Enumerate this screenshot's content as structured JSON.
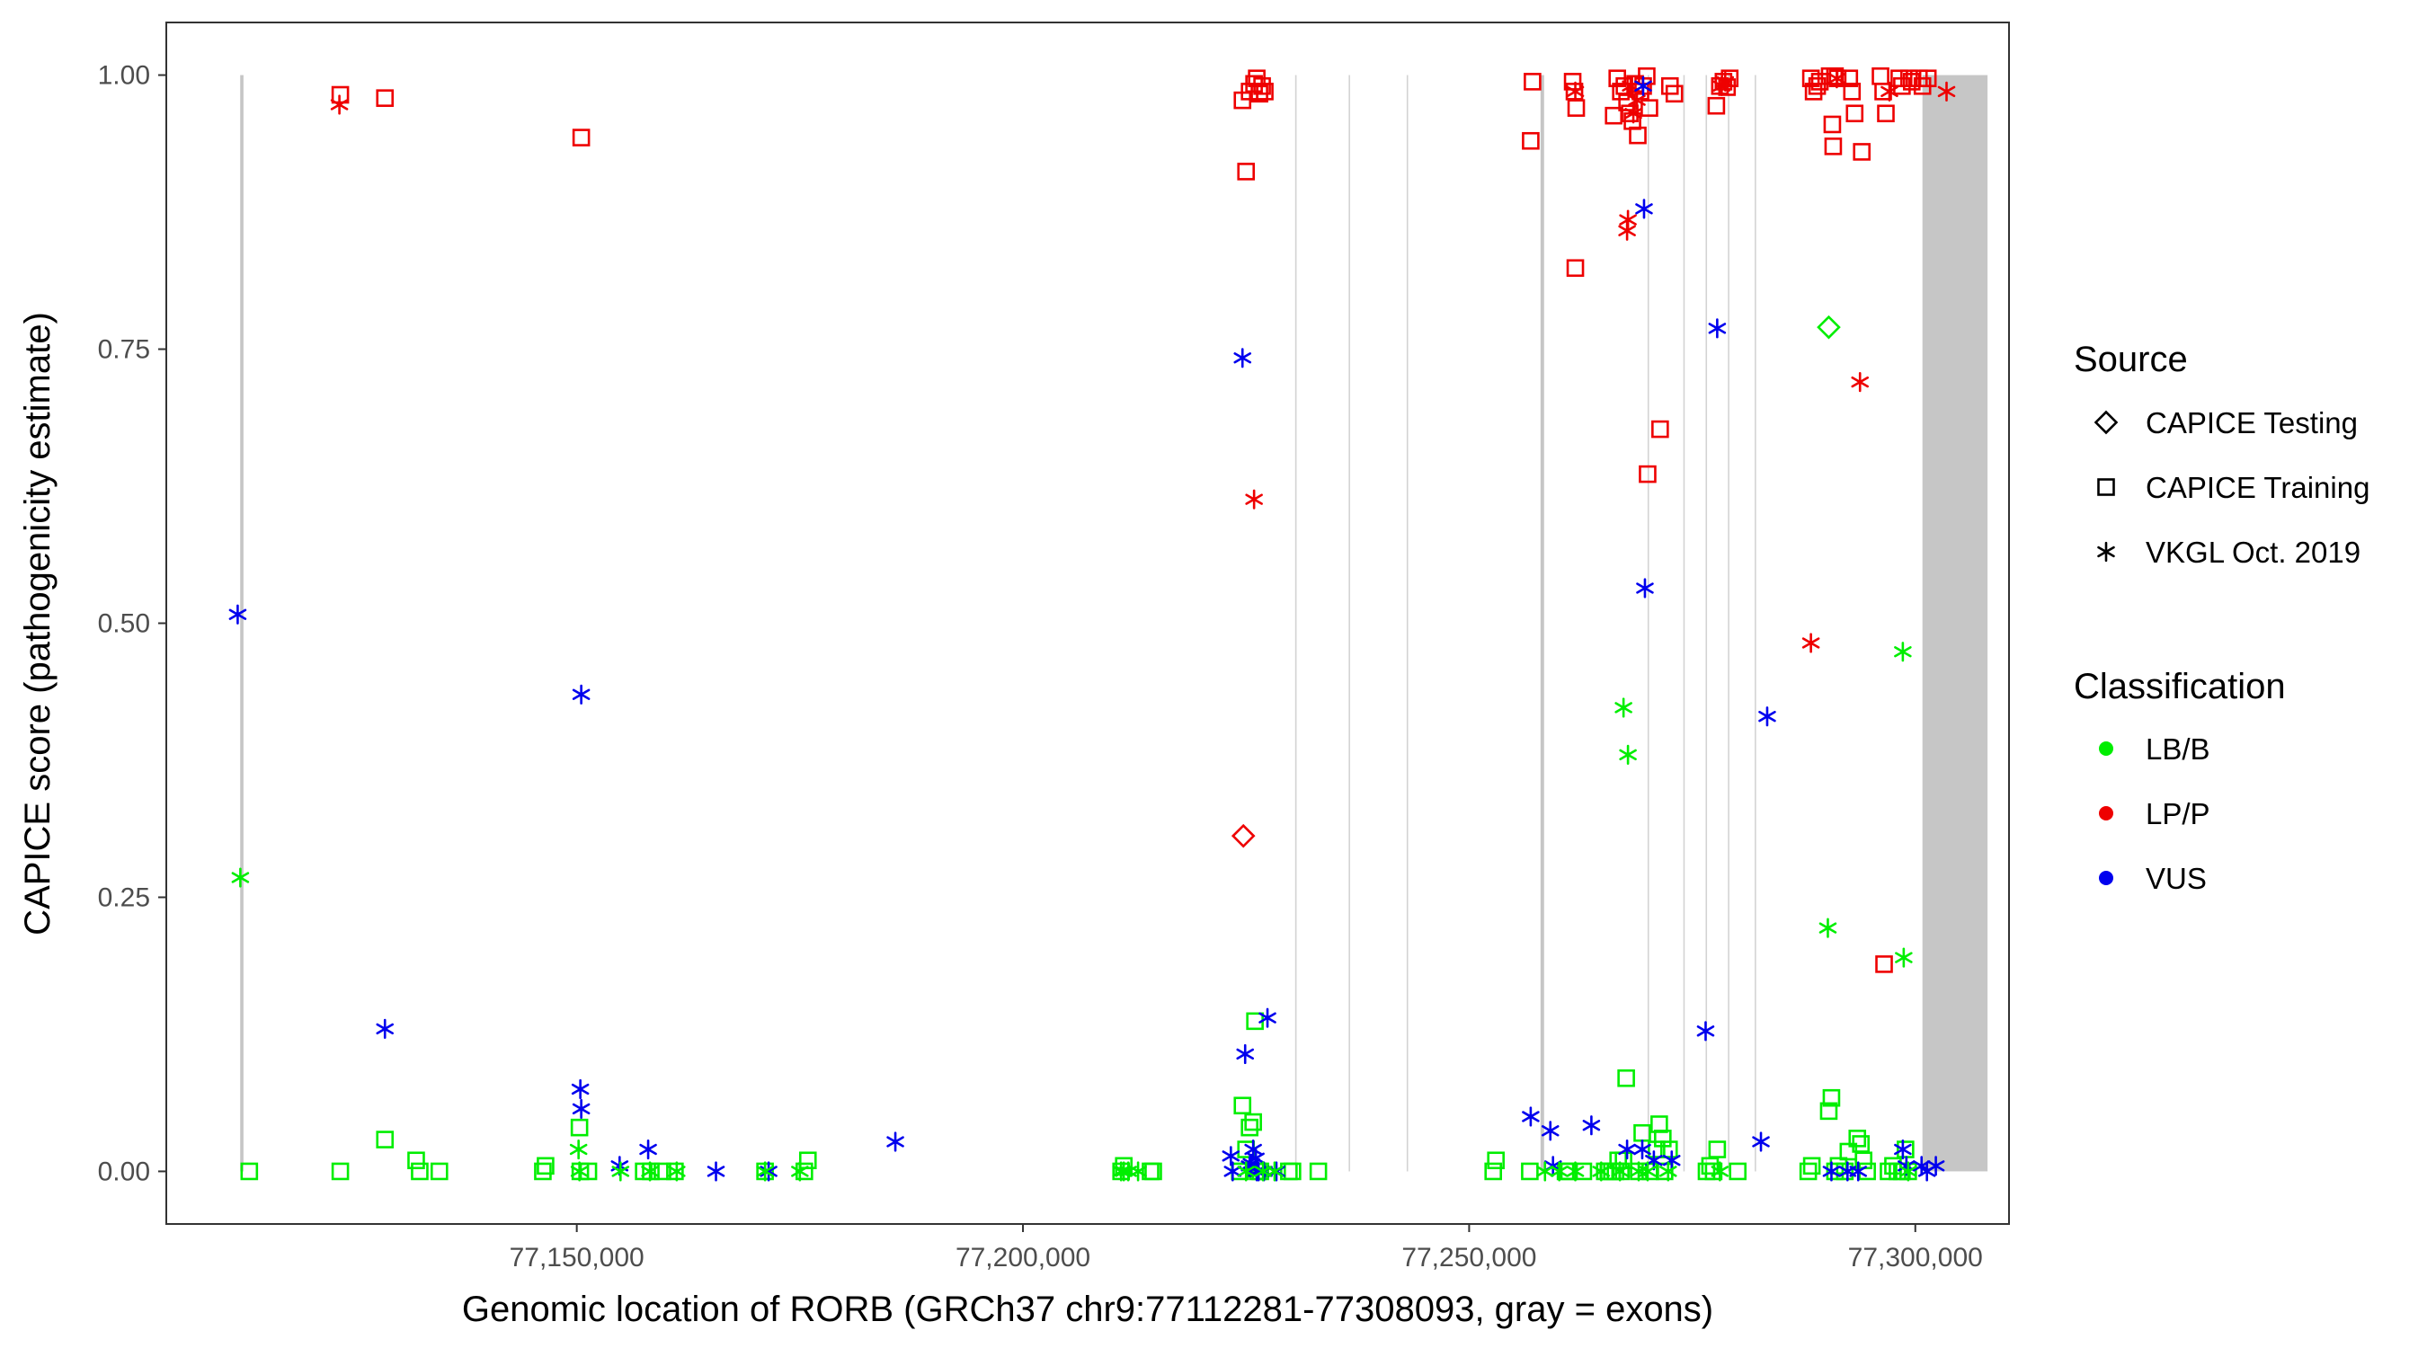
{
  "chart_data": {
    "type": "scatter",
    "xlabel": "Genomic location of RORB (GRCh37 chr9:77112281-77308093, gray = exons)",
    "ylabel": "CAPICE score (pathogenicity estimate)",
    "xlim": [
      77104000,
      77310500
    ],
    "ylim": [
      -0.048,
      1.048
    ],
    "x_ticks": [
      77150000,
      77200000,
      77250000,
      77300000
    ],
    "x_tick_labels": [
      "77,150,000",
      "77,200,000",
      "77,250,000",
      "77,300,000"
    ],
    "y_ticks": [
      0,
      0.25,
      0.5,
      0.75,
      1
    ],
    "y_tick_labels": [
      "0.00",
      "0.25",
      "0.50",
      "0.75",
      "1.00"
    ],
    "grid": false,
    "exons": [
      [
        77112281,
        77112650
      ],
      [
        77230500,
        77230600
      ],
      [
        77236500,
        77236600
      ],
      [
        77243000,
        77243100
      ],
      [
        77258000,
        77258400
      ],
      [
        77270000,
        77270100
      ],
      [
        77274000,
        77274100
      ],
      [
        77276500,
        77276600
      ],
      [
        77279000,
        77279100
      ],
      [
        77282000,
        77282100
      ],
      [
        77300800,
        77308093
      ]
    ],
    "colors": {
      "LB/B": "#00ee00",
      "LP/P": "#ee0000",
      "VUS": "#0000ee"
    },
    "legend": {
      "placement": "right",
      "source_title": "Source",
      "sources": [
        {
          "key": "testing",
          "label": "CAPICE Testing",
          "shape": "diamond"
        },
        {
          "key": "training",
          "label": "CAPICE Training",
          "shape": "square"
        },
        {
          "key": "vkgl",
          "label": "VKGL Oct. 2019",
          "shape": "asterisk"
        }
      ],
      "class_title": "Classification",
      "classes": [
        "LB/B",
        "LP/P",
        "VUS"
      ]
    },
    "series": [
      {
        "source": "training",
        "cls": "LP/P",
        "points": [
          [
            77123500,
            0.982
          ],
          [
            77128500,
            0.979
          ],
          [
            77150500,
            0.943
          ],
          [
            77224600,
            0.977
          ],
          [
            77225000,
            0.912
          ],
          [
            77225400,
            0.985
          ],
          [
            77225900,
            0.992
          ],
          [
            77226200,
            0.997
          ],
          [
            77226500,
            0.983
          ],
          [
            77226800,
            0.99
          ],
          [
            77227100,
            0.985
          ],
          [
            77257100,
            0.994
          ],
          [
            77256900,
            0.94
          ],
          [
            77261600,
            0.994
          ],
          [
            77261800,
            0.985
          ],
          [
            77262000,
            0.97
          ],
          [
            77261900,
            0.824
          ],
          [
            77266200,
            0.963
          ],
          [
            77266600,
            0.997
          ],
          [
            77267000,
            0.985
          ],
          [
            77267400,
            0.99
          ],
          [
            77267700,
            0.975
          ],
          [
            77268000,
            0.965
          ],
          [
            77268300,
            0.958
          ],
          [
            77268600,
            0.992
          ],
          [
            77268900,
            0.945
          ],
          [
            77269200,
            0.985
          ],
          [
            77269500,
            0.99
          ],
          [
            77269900,
            0.999
          ],
          [
            77270200,
            0.97
          ],
          [
            77270000,
            0.636
          ],
          [
            77271400,
            0.677
          ],
          [
            77272500,
            0.99
          ],
          [
            77273000,
            0.983
          ],
          [
            77277700,
            0.972
          ],
          [
            77278100,
            0.99
          ],
          [
            77278500,
            0.994
          ],
          [
            77278900,
            0.989
          ],
          [
            77279200,
            0.997
          ],
          [
            77288300,
            0.997
          ],
          [
            77288600,
            0.985
          ],
          [
            77289000,
            0.99
          ],
          [
            77289300,
            0.994
          ],
          [
            77290400,
            0.999
          ],
          [
            77290700,
            0.955
          ],
          [
            77290800,
            0.935
          ],
          [
            77291000,
            0.999
          ],
          [
            77291300,
            0.997
          ],
          [
            77292600,
            0.997
          ],
          [
            77292900,
            0.985
          ],
          [
            77293200,
            0.965
          ],
          [
            77294000,
            0.93
          ],
          [
            77296100,
            0.999
          ],
          [
            77296400,
            0.985
          ],
          [
            77296700,
            0.965
          ],
          [
            77296500,
            0.189
          ],
          [
            77298200,
            0.997
          ],
          [
            77298500,
            0.99
          ],
          [
            77299300,
            0.997
          ],
          [
            77299600,
            0.994
          ],
          [
            77300400,
            0.997
          ],
          [
            77300800,
            0.99
          ],
          [
            77301400,
            0.997
          ]
        ]
      },
      {
        "source": "training",
        "cls": "LB/B",
        "points": [
          [
            77113300,
            0.0
          ],
          [
            77123500,
            0.0
          ],
          [
            77128500,
            0.029
          ],
          [
            77132000,
            0.01
          ],
          [
            77132400,
            0.0
          ],
          [
            77134600,
            0.0
          ],
          [
            77146200,
            0.0
          ],
          [
            77146500,
            0.005
          ],
          [
            77150300,
            0.04
          ],
          [
            77150400,
            0.0
          ],
          [
            77151300,
            0.0
          ],
          [
            77157500,
            0.0
          ],
          [
            77158300,
            0.0
          ],
          [
            77159600,
            0.0
          ],
          [
            77161000,
            0.0
          ],
          [
            77171100,
            0.0
          ],
          [
            77175500,
            0.0
          ],
          [
            77175900,
            0.01
          ],
          [
            77211000,
            0.0
          ],
          [
            77211300,
            0.005
          ],
          [
            77214300,
            0.0
          ],
          [
            77214600,
            0.0
          ],
          [
            77230200,
            0.0
          ],
          [
            77233100,
            0.0
          ],
          [
            77224300,
            0.0
          ],
          [
            77224600,
            0.06
          ],
          [
            77225000,
            0.02
          ],
          [
            77225400,
            0.04
          ],
          [
            77225800,
            0.045
          ],
          [
            77226000,
            0.137
          ],
          [
            77226300,
            0.0
          ],
          [
            77226600,
            0.0
          ],
          [
            77229800,
            0.0
          ],
          [
            77252700,
            0.0
          ],
          [
            77253000,
            0.01
          ],
          [
            77256800,
            0.0
          ],
          [
            77260800,
            0.0
          ],
          [
            77261200,
            0.0
          ],
          [
            77262800,
            0.0
          ],
          [
            77265200,
            0.0
          ],
          [
            77265600,
            0.0
          ],
          [
            77266000,
            0.0
          ],
          [
            77266400,
            0.0
          ],
          [
            77266700,
            0.01
          ],
          [
            77267000,
            0.0
          ],
          [
            77267300,
            0.01
          ],
          [
            77267600,
            0.085
          ],
          [
            77269000,
            0.0
          ],
          [
            77269400,
            0.035
          ],
          [
            77270300,
            0.0
          ],
          [
            77271000,
            0.02
          ],
          [
            77271300,
            0.043
          ],
          [
            77271700,
            0.03
          ],
          [
            77271900,
            0.0
          ],
          [
            77272400,
            0.02
          ],
          [
            77276600,
            0.0
          ],
          [
            77277000,
            0.005
          ],
          [
            77277400,
            0.0
          ],
          [
            77277800,
            0.02
          ],
          [
            77280100,
            0.0
          ],
          [
            77288000,
            0.0
          ],
          [
            77288400,
            0.005
          ],
          [
            77290300,
            0.055
          ],
          [
            77290600,
            0.067
          ],
          [
            77291000,
            0.0
          ],
          [
            77291400,
            0.005
          ],
          [
            77292100,
            0.0
          ],
          [
            77292500,
            0.018
          ],
          [
            77293500,
            0.03
          ],
          [
            77293900,
            0.025
          ],
          [
            77294200,
            0.01
          ],
          [
            77294600,
            0.0
          ],
          [
            77297000,
            0.0
          ],
          [
            77297500,
            0.005
          ],
          [
            77298000,
            0.0
          ],
          [
            77298500,
            0.0
          ],
          [
            77298900,
            0.02
          ],
          [
            77299200,
            0.0
          ]
        ]
      },
      {
        "source": "vkgl",
        "cls": "LP/P",
        "points": [
          [
            77123400,
            0.973
          ],
          [
            77225900,
            0.613
          ],
          [
            77261900,
            0.985
          ],
          [
            77267700,
            0.858
          ],
          [
            77267800,
            0.868
          ],
          [
            77268100,
            0.99
          ],
          [
            77268400,
            0.965
          ],
          [
            77268800,
            0.977
          ],
          [
            77278300,
            0.99
          ],
          [
            77278700,
            0.994
          ],
          [
            77288300,
            0.482
          ],
          [
            77291200,
            0.997
          ],
          [
            77293800,
            0.72
          ],
          [
            77297100,
            0.985
          ],
          [
            77303500,
            0.985
          ]
        ]
      },
      {
        "source": "vkgl",
        "cls": "VUS",
        "points": [
          [
            77112000,
            0.508
          ],
          [
            77128500,
            0.13
          ],
          [
            77150500,
            0.435
          ],
          [
            77150400,
            0.075
          ],
          [
            77150500,
            0.057
          ],
          [
            77154800,
            0.005
          ],
          [
            77158000,
            0.02
          ],
          [
            77165600,
            0.0
          ],
          [
            77171500,
            0.0
          ],
          [
            77185700,
            0.027
          ],
          [
            77223300,
            0.014
          ],
          [
            77223500,
            0.0
          ],
          [
            77224600,
            0.742
          ],
          [
            77224900,
            0.107
          ],
          [
            77227000,
            0.0
          ],
          [
            77227400,
            0.14
          ],
          [
            77226200,
            0.0
          ],
          [
            77225400,
            0.005
          ],
          [
            77225600,
            0.007
          ],
          [
            77225800,
            0.02
          ],
          [
            77226100,
            0.012
          ],
          [
            77226400,
            0.0
          ],
          [
            77228400,
            0.0
          ],
          [
            77256900,
            0.05
          ],
          [
            77259100,
            0.037
          ],
          [
            77259400,
            0.005
          ],
          [
            77263700,
            0.042
          ],
          [
            77267700,
            0.02
          ],
          [
            77269400,
            0.02
          ],
          [
            77269500,
            0.99
          ],
          [
            77269600,
            0.878
          ],
          [
            77269700,
            0.532
          ],
          [
            77270700,
            0.01
          ],
          [
            77272700,
            0.01
          ],
          [
            77276500,
            0.128
          ],
          [
            77277800,
            0.769
          ],
          [
            77282700,
            0.027
          ],
          [
            77283400,
            0.415
          ],
          [
            77290600,
            0.0
          ],
          [
            77292400,
            0.0
          ],
          [
            77293600,
            0.0
          ],
          [
            77298600,
            0.02
          ],
          [
            77299000,
            0.005
          ],
          [
            77300700,
            0.005
          ],
          [
            77301300,
            0.0
          ],
          [
            77302300,
            0.005
          ]
        ]
      },
      {
        "source": "vkgl",
        "cls": "LB/B",
        "points": [
          [
            77112300,
            0.268
          ],
          [
            77150200,
            0.02
          ],
          [
            77150300,
            0.0
          ],
          [
            77154900,
            0.0
          ],
          [
            77158200,
            0.0
          ],
          [
            77161200,
            0.0
          ],
          [
            77171100,
            0.0
          ],
          [
            77175000,
            0.0
          ],
          [
            77211000,
            0.0
          ],
          [
            77211300,
            0.0
          ],
          [
            77211800,
            0.0
          ],
          [
            77212900,
            0.0
          ],
          [
            77225000,
            0.0
          ],
          [
            77226900,
            0.0
          ],
          [
            77228200,
            0.0
          ],
          [
            77258500,
            0.0
          ],
          [
            77260100,
            0.0
          ],
          [
            77261900,
            0.0
          ],
          [
            77264800,
            0.0
          ],
          [
            77266900,
            0.0
          ],
          [
            77267300,
            0.423
          ],
          [
            77267800,
            0.38
          ],
          [
            77269000,
            0.0
          ],
          [
            77270000,
            0.0
          ],
          [
            77272300,
            0.0
          ],
          [
            77278100,
            0.0
          ],
          [
            77290200,
            0.222
          ],
          [
            77298600,
            0.474
          ],
          [
            77298700,
            0.195
          ],
          [
            77299200,
            0.0
          ]
        ]
      },
      {
        "source": "testing",
        "cls": "LP/P",
        "points": [
          [
            77224700,
            0.306
          ]
        ]
      },
      {
        "source": "testing",
        "cls": "LB/B",
        "points": [
          [
            77290300,
            0.77
          ]
        ]
      }
    ]
  }
}
